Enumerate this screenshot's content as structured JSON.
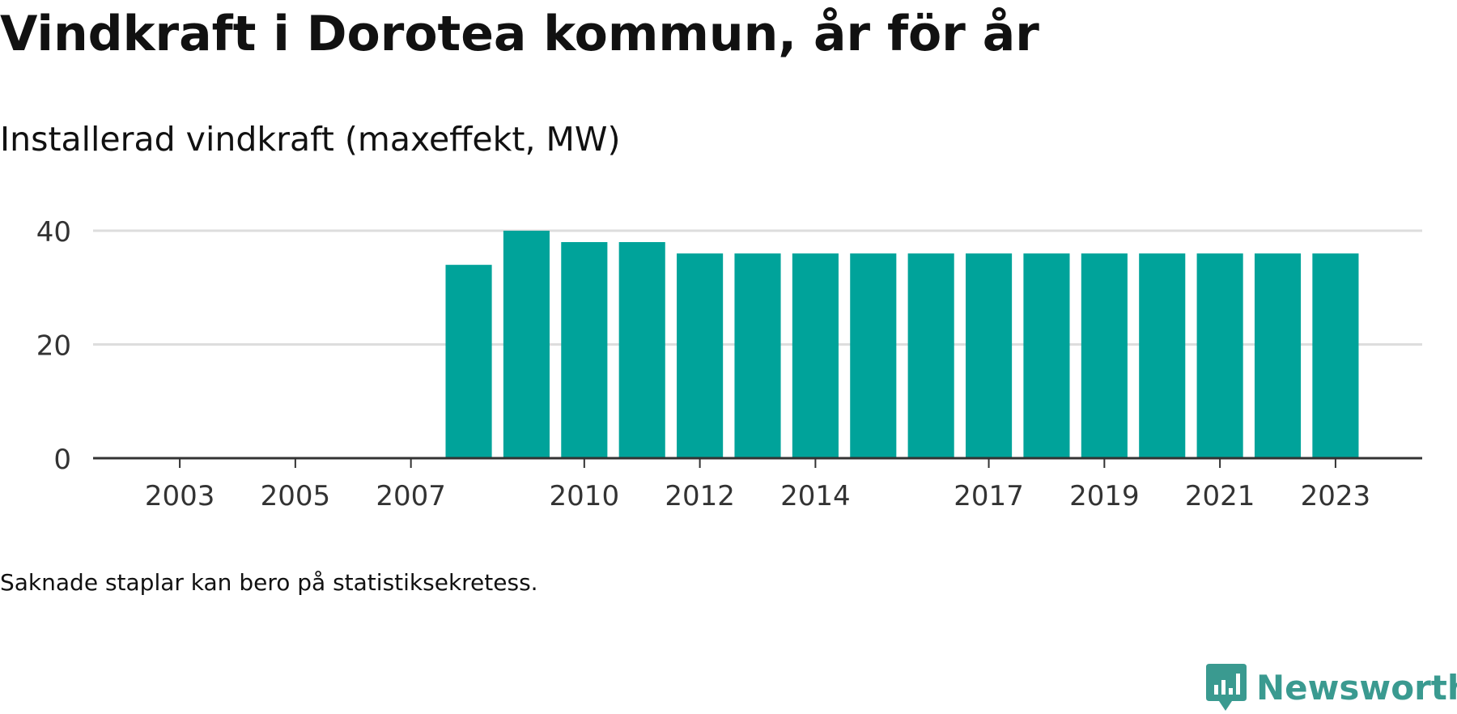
{
  "title": "Vindkraft i Dorotea kommun, år för år",
  "subtitle": "Installerad vindkraft (maxeffekt, MW)",
  "note": "Saknade staplar kan bero på statistiksekretess.",
  "brand": {
    "name": "Newsworthy",
    "icon": "newsworthy-logo-icon",
    "color": "#3a9a90"
  },
  "colors": {
    "bar": "#00a39a",
    "grid": "#dddddd",
    "axis": "#333333",
    "tick_text": "#333333"
  },
  "chart_data": {
    "type": "bar",
    "title": "Vindkraft i Dorotea kommun, år för år",
    "ylabel": "Installerad vindkraft (maxeffekt, MW)",
    "xlabel": "",
    "categories": [
      2002,
      2003,
      2004,
      2005,
      2006,
      2007,
      2008,
      2009,
      2010,
      2011,
      2012,
      2013,
      2014,
      2015,
      2016,
      2017,
      2018,
      2019,
      2020,
      2021,
      2022,
      2023
    ],
    "values": [
      null,
      null,
      null,
      null,
      null,
      null,
      34,
      40,
      38,
      38,
      36,
      36,
      36,
      36,
      36,
      36,
      36,
      36,
      36,
      36,
      36,
      36
    ],
    "x_ticks": [
      2003,
      2005,
      2007,
      2010,
      2012,
      2014,
      2017,
      2019,
      2021,
      2023
    ],
    "y_ticks": [
      0,
      20,
      40
    ],
    "ylim": [
      0,
      40
    ],
    "xlim": [
      2001.5,
      2024.5
    ],
    "grid": true,
    "legend": "none"
  }
}
